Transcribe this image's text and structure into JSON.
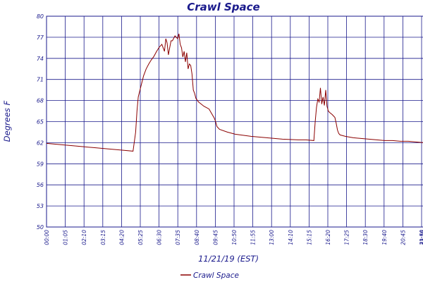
{
  "chart_data": {
    "type": "line",
    "title": "Crawl Space",
    "xlabel": "11/21/19 (EST)",
    "ylabel": "Degrees F",
    "ylim": [
      50,
      80
    ],
    "y_ticks": [
      "80",
      "77",
      "74",
      "71",
      "68",
      "65",
      "62",
      "59",
      "56",
      "53",
      "50"
    ],
    "x_tick_labels": [
      "00:00",
      "01:05",
      "02:10",
      "03:15",
      "04:20",
      "05:25",
      "06:30",
      "07:35",
      "08:40",
      "09:45",
      "10:50",
      "11:55",
      "13:00",
      "14:10",
      "15:15",
      "16:20",
      "17:25",
      "18:30",
      "19:40",
      "20:45",
      "21:50",
      "22:55",
      "23:59"
    ],
    "grid": true,
    "legend_position": "bottom",
    "colors": {
      "series": "#8b0000",
      "axes": "#1a1a8c",
      "grid": "#1a1a8c"
    },
    "series": [
      {
        "name": "Crawl Space",
        "x": [
          "00:00",
          "01:00",
          "02:00",
          "03:00",
          "04:00",
          "05:00",
          "05:30",
          "05:40",
          "05:45",
          "05:50",
          "06:00",
          "06:10",
          "06:20",
          "06:30",
          "06:40",
          "06:50",
          "07:00",
          "07:10",
          "07:20",
          "07:25",
          "07:30",
          "07:35",
          "07:40",
          "07:45",
          "07:50",
          "07:55",
          "08:00",
          "08:10",
          "08:20",
          "08:25",
          "08:30",
          "08:35",
          "08:40",
          "08:45",
          "08:50",
          "08:55",
          "09:00",
          "09:05",
          "09:10",
          "09:15",
          "09:20",
          "09:25",
          "09:30",
          "09:40",
          "09:50",
          "10:00",
          "10:20",
          "10:40",
          "10:45",
          "10:50",
          "11:00",
          "11:30",
          "12:00",
          "13:00",
          "14:00",
          "15:00",
          "16:00",
          "16:30",
          "17:00",
          "17:05",
          "17:10",
          "17:15",
          "17:20",
          "17:25",
          "17:30",
          "17:35",
          "17:40",
          "17:45",
          "17:50",
          "17:55",
          "18:00",
          "18:10",
          "18:20",
          "18:25",
          "18:30",
          "18:35",
          "18:40",
          "19:00",
          "19:30",
          "20:00",
          "20:30",
          "21:00",
          "21:30",
          "22:00",
          "22:30",
          "23:00",
          "23:30",
          "23:59"
        ],
        "values": [
          61.9,
          61.7,
          61.5,
          61.3,
          61.1,
          60.9,
          60.8,
          63.5,
          66.5,
          68.5,
          70.0,
          71.5,
          72.5,
          73.2,
          73.8,
          74.3,
          75.0,
          75.6,
          76.0,
          75.5,
          75.0,
          76.8,
          76.2,
          74.5,
          75.5,
          76.5,
          76.5,
          77.2,
          76.8,
          77.5,
          76.0,
          75.5,
          74.2,
          75.0,
          73.5,
          74.8,
          72.5,
          73.2,
          73.0,
          71.8,
          69.5,
          69.0,
          68.3,
          67.8,
          67.5,
          67.2,
          66.8,
          65.5,
          65.0,
          64.3,
          63.9,
          63.5,
          63.2,
          62.9,
          62.7,
          62.5,
          62.4,
          62.4,
          62.3,
          65.0,
          67.0,
          68.2,
          67.8,
          69.8,
          67.5,
          68.5,
          67.3,
          69.5,
          67.2,
          66.5,
          66.3,
          66.0,
          65.6,
          64.8,
          63.8,
          63.3,
          63.1,
          62.9,
          62.7,
          62.6,
          62.5,
          62.4,
          62.3,
          62.3,
          62.2,
          62.2,
          62.1,
          62.0
        ]
      }
    ]
  }
}
